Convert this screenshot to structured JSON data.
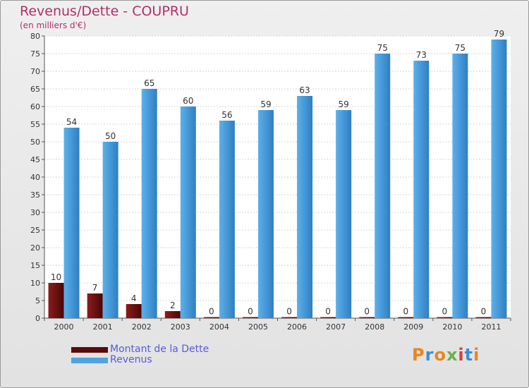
{
  "title": "Revenus/Dette - COUPRU",
  "unit": "(en milliers d'€)",
  "colors": {
    "debt": "#7a1010",
    "revenue": "#4fa3e0",
    "title": "#b0306a",
    "legend_text": "#5a5ae0"
  },
  "legend": [
    {
      "label": "Montant de la Dette",
      "color": "#7a1010"
    },
    {
      "label": "Revenus",
      "color": "#4fa3e0"
    }
  ],
  "logo": "Proxiti",
  "chart_data": {
    "type": "bar",
    "title": "Revenus/Dette - COUPRU",
    "ylabel": "(en milliers d'€)",
    "xlabel": "",
    "ylim": [
      0,
      80
    ],
    "yticks": [
      0,
      5,
      10,
      15,
      20,
      25,
      30,
      35,
      40,
      45,
      50,
      55,
      60,
      65,
      70,
      75,
      80
    ],
    "grid": true,
    "legend_position": "bottom-left",
    "categories": [
      "2000",
      "2001",
      "2002",
      "2003",
      "2004",
      "2005",
      "2006",
      "2007",
      "2008",
      "2009",
      "2010",
      "2011"
    ],
    "series": [
      {
        "name": "Montant de la Dette",
        "values": [
          10,
          7,
          4,
          2,
          0,
          0,
          0,
          0,
          0,
          0,
          0,
          0
        ]
      },
      {
        "name": "Revenus",
        "values": [
          54,
          50,
          65,
          60,
          56,
          59,
          63,
          59,
          75,
          73,
          75,
          79
        ]
      }
    ]
  }
}
